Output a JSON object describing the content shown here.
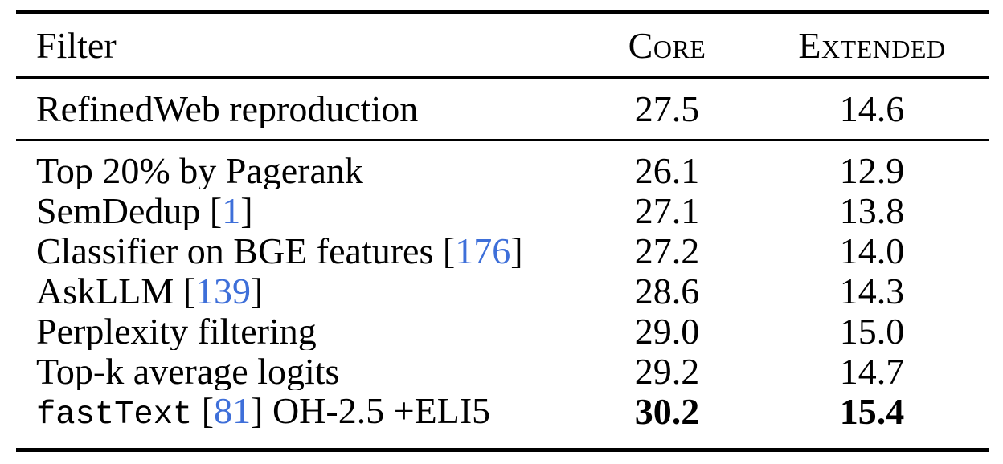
{
  "table": {
    "header": {
      "filter": "Filter",
      "core": "Core",
      "extended": "Extended"
    },
    "sections": [
      {
        "name": "baseline",
        "rows": [
          {
            "label_parts": [
              {
                "type": "text",
                "text": "RefinedWeb reproduction"
              }
            ],
            "core": "27.5",
            "extended": "14.6",
            "bold": false
          }
        ]
      },
      {
        "name": "filters",
        "rows": [
          {
            "label_parts": [
              {
                "type": "text",
                "text": "Top 20% by Pagerank"
              }
            ],
            "core": "26.1",
            "extended": "12.9",
            "bold": false
          },
          {
            "label_parts": [
              {
                "type": "text",
                "text": "SemDedup ["
              },
              {
                "type": "cite",
                "text": "1"
              },
              {
                "type": "text",
                "text": "]"
              }
            ],
            "core": "27.1",
            "extended": "13.8",
            "bold": false
          },
          {
            "label_parts": [
              {
                "type": "text",
                "text": "Classifier on BGE features ["
              },
              {
                "type": "cite",
                "text": "176"
              },
              {
                "type": "text",
                "text": "]"
              }
            ],
            "core": "27.2",
            "extended": "14.0",
            "bold": false
          },
          {
            "label_parts": [
              {
                "type": "text",
                "text": "AskLLM ["
              },
              {
                "type": "cite",
                "text": "139"
              },
              {
                "type": "text",
                "text": "]"
              }
            ],
            "core": "28.6",
            "extended": "14.3",
            "bold": false
          },
          {
            "label_parts": [
              {
                "type": "text",
                "text": "Perplexity filtering"
              }
            ],
            "core": "29.0",
            "extended": "15.0",
            "bold": false
          },
          {
            "label_parts": [
              {
                "type": "text",
                "text": "Top-k average logits"
              }
            ],
            "core": "29.2",
            "extended": "14.7",
            "bold": false
          },
          {
            "label_parts": [
              {
                "type": "mono",
                "text": "fastText"
              },
              {
                "type": "text",
                "text": " ["
              },
              {
                "type": "cite",
                "text": "81"
              },
              {
                "type": "text",
                "text": "] OH-2.5 +ELI5"
              }
            ],
            "core": "30.2",
            "extended": "15.4",
            "bold": true
          }
        ]
      }
    ]
  },
  "colors": {
    "text": "#000000",
    "background": "#FFFFFF",
    "rule": "#000000",
    "citation_link": "#3E6FD9"
  }
}
